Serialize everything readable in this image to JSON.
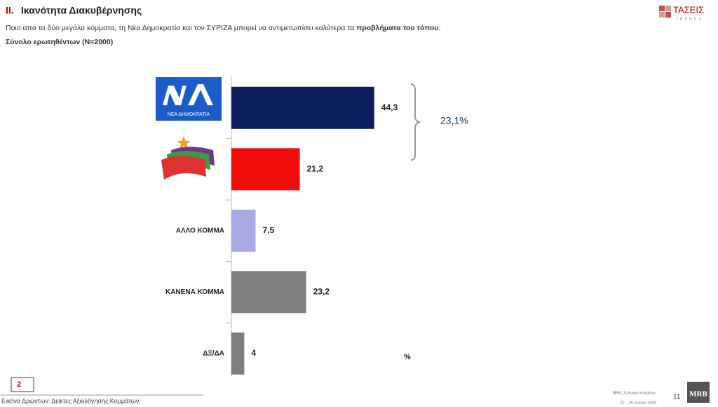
{
  "header": {
    "title_prefix": "ΙΙ.",
    "title": "Ικανότητα Διακυβέρνησης",
    "question": "Ποιο από τα δύο μεγάλα κόμματα, τη Νέα Δημοκρατία και τον ΣΥΡΙΖΑ μπορεί να αντιμετωπίσει καλύτερα  τα",
    "question_bold": "προβλήματα του τόπου",
    "question_end": ";",
    "base": "Σύνολο ερωτηθέντων (N=2000)",
    "logo": "ΤΑΣΕΙΣ",
    "logo_sub": "TRENDS"
  },
  "chart_data": {
    "type": "hbar",
    "categories": [
      null,
      null,
      "ΑΛΛΟ ΚΟΜΜΑ",
      "ΚΑΝΕΝΑ ΚΟΜΜΑ",
      "ΔΞ/ΔΑ"
    ],
    "values": [
      44.3,
      21.2,
      7.5,
      23.2,
      4
    ],
    "value_labels": [
      "44,3",
      "21,2",
      "7,5",
      "23,2",
      "4"
    ],
    "colors": [
      "#0d1f5c",
      "#f20d0d",
      "#a9a9e6",
      "#7f7f7f",
      "#7f7f7f"
    ],
    "party_logo_text": "ΝΕΑ ΔΗΜΟΚΡΑΤΙΑ",
    "annotation": "23,1%",
    "unit": "%"
  },
  "footer": {
    "page_box": "2",
    "section": "Εικόνα Δρώντων: Δείκτες Αξιολόγησης  Κομμάτων",
    "source": "MRB, Συλλογή στοιχείων:",
    "dates": "17 – 25 Ιουνίου 2020",
    "page": "11",
    "mrb_logo": "MRB"
  }
}
